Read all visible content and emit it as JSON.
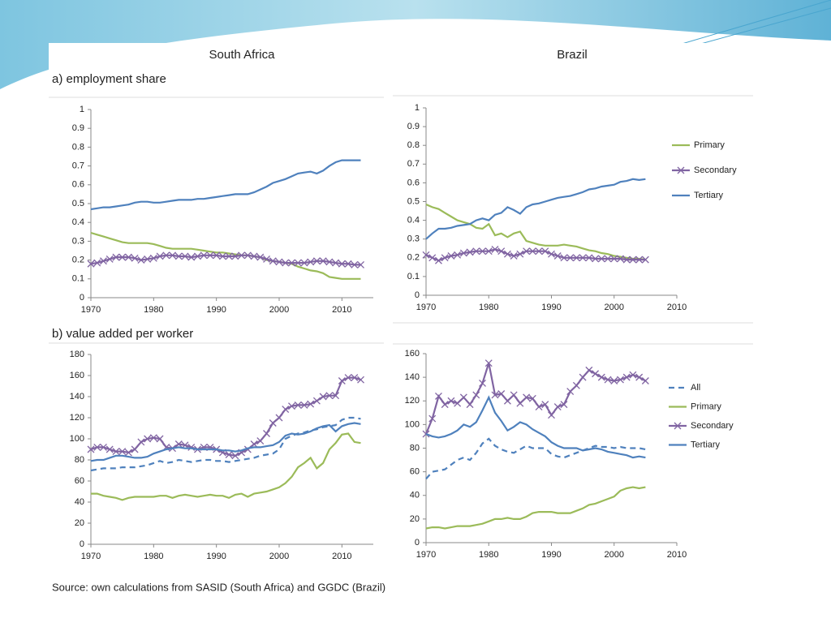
{
  "headings": {
    "left": "South Africa",
    "right": "Brazil"
  },
  "sections": [
    "a) employment share",
    "b) value added per worker"
  ],
  "source": "Source: own calculations from SASID (South Africa) and GGDC (Brazil)",
  "chart_data": [
    {
      "type": "line",
      "x": [
        1970,
        1971,
        1972,
        1973,
        1974,
        1975,
        1976,
        1977,
        1978,
        1979,
        1980,
        1981,
        1982,
        1983,
        1984,
        1985,
        1986,
        1987,
        1988,
        1989,
        1990,
        1991,
        1992,
        1993,
        1994,
        1995,
        1996,
        1997,
        1998,
        1999,
        2000,
        2001,
        2002,
        2003,
        2004,
        2005,
        2006,
        2007,
        2008,
        2009,
        2010,
        2011,
        2012,
        2013
      ],
      "series": [
        {
          "color": "#4f81bd",
          "values": [
            0.47,
            0.475,
            0.48,
            0.48,
            0.485,
            0.49,
            0.495,
            0.505,
            0.51,
            0.51,
            0.505,
            0.505,
            0.51,
            0.515,
            0.52,
            0.52,
            0.52,
            0.525,
            0.525,
            0.53,
            0.535,
            0.54,
            0.545,
            0.55,
            0.55,
            0.55,
            0.56,
            0.575,
            0.59,
            0.61,
            0.62,
            0.63,
            0.645,
            0.66,
            0.665,
            0.67,
            0.66,
            0.675,
            0.7,
            0.72,
            0.73,
            0.73,
            0.73,
            0.73
          ]
        },
        {
          "color": "#9bbb59",
          "values": [
            0.345,
            0.335,
            0.325,
            0.315,
            0.305,
            0.295,
            0.29,
            0.29,
            0.29,
            0.29,
            0.285,
            0.275,
            0.265,
            0.26,
            0.26,
            0.26,
            0.26,
            0.255,
            0.25,
            0.245,
            0.24,
            0.24,
            0.235,
            0.23,
            0.225,
            0.225,
            0.22,
            0.215,
            0.2,
            0.195,
            0.19,
            0.185,
            0.18,
            0.165,
            0.155,
            0.145,
            0.14,
            0.13,
            0.11,
            0.105,
            0.1,
            0.1,
            0.1,
            0.1
          ]
        },
        {
          "color": "#8064a2",
          "marker": "x",
          "values": [
            0.18,
            0.185,
            0.195,
            0.205,
            0.215,
            0.215,
            0.215,
            0.21,
            0.2,
            0.205,
            0.21,
            0.22,
            0.225,
            0.225,
            0.22,
            0.22,
            0.215,
            0.22,
            0.225,
            0.225,
            0.225,
            0.22,
            0.22,
            0.22,
            0.225,
            0.225,
            0.22,
            0.215,
            0.205,
            0.195,
            0.19,
            0.185,
            0.185,
            0.185,
            0.185,
            0.19,
            0.195,
            0.195,
            0.19,
            0.185,
            0.18,
            0.18,
            0.175,
            0.175
          ]
        }
      ],
      "xlim": [
        1970,
        2015
      ],
      "xticks": [
        1970,
        1980,
        1990,
        2000,
        2010
      ],
      "ylim": [
        0,
        1
      ],
      "yticks": [
        0,
        0.1,
        0.2,
        0.3,
        0.4,
        0.5,
        0.6,
        0.7,
        0.8,
        0.9,
        1
      ]
    },
    {
      "type": "line",
      "x": [
        1970,
        1971,
        1972,
        1973,
        1974,
        1975,
        1976,
        1977,
        1978,
        1979,
        1980,
        1981,
        1982,
        1983,
        1984,
        1985,
        1986,
        1987,
        1988,
        1989,
        1990,
        1991,
        1992,
        1993,
        1994,
        1995,
        1996,
        1997,
        1998,
        1999,
        2000,
        2001,
        2002,
        2003,
        2004,
        2005
      ],
      "series": [
        {
          "name": "Primary",
          "color": "#9bbb59",
          "values": [
            0.485,
            0.47,
            0.46,
            0.44,
            0.42,
            0.4,
            0.39,
            0.38,
            0.36,
            0.355,
            0.38,
            0.32,
            0.33,
            0.31,
            0.33,
            0.34,
            0.29,
            0.28,
            0.27,
            0.265,
            0.265,
            0.265,
            0.27,
            0.265,
            0.26,
            0.25,
            0.24,
            0.235,
            0.225,
            0.22,
            0.21,
            0.205,
            0.2,
            0.195,
            0.195,
            0.19
          ]
        },
        {
          "name": "Secondary",
          "color": "#8064a2",
          "marker": "x",
          "values": [
            0.215,
            0.2,
            0.185,
            0.2,
            0.21,
            0.215,
            0.225,
            0.23,
            0.235,
            0.235,
            0.235,
            0.245,
            0.235,
            0.22,
            0.21,
            0.22,
            0.235,
            0.235,
            0.235,
            0.235,
            0.22,
            0.21,
            0.2,
            0.2,
            0.2,
            0.2,
            0.2,
            0.195,
            0.195,
            0.195,
            0.195,
            0.195,
            0.19,
            0.19,
            0.19,
            0.19
          ]
        },
        {
          "name": "Tertiary",
          "color": "#4f81bd",
          "values": [
            0.3,
            0.33,
            0.355,
            0.355,
            0.36,
            0.37,
            0.375,
            0.38,
            0.4,
            0.41,
            0.4,
            0.43,
            0.44,
            0.47,
            0.455,
            0.435,
            0.47,
            0.485,
            0.49,
            0.5,
            0.51,
            0.52,
            0.525,
            0.53,
            0.54,
            0.55,
            0.565,
            0.57,
            0.58,
            0.585,
            0.59,
            0.605,
            0.61,
            0.62,
            0.615,
            0.62
          ]
        }
      ],
      "xlim": [
        1970,
        2010
      ],
      "xticks": [
        1970,
        1980,
        1990,
        2000,
        2010
      ],
      "ylim": [
        0,
        1
      ],
      "yticks": [
        0,
        0.1,
        0.2,
        0.3,
        0.4,
        0.5,
        0.6,
        0.7,
        0.8,
        0.9,
        1
      ],
      "legend": "right"
    },
    {
      "type": "line",
      "x": [
        1970,
        1971,
        1972,
        1973,
        1974,
        1975,
        1976,
        1977,
        1978,
        1979,
        1980,
        1981,
        1982,
        1983,
        1984,
        1985,
        1986,
        1987,
        1988,
        1989,
        1990,
        1991,
        1992,
        1993,
        1994,
        1995,
        1996,
        1997,
        1998,
        1999,
        2000,
        2001,
        2002,
        2003,
        2004,
        2005,
        2006,
        2007,
        2008,
        2009,
        2010,
        2011,
        2012,
        2013
      ],
      "series": [
        {
          "color": "#4f81bd",
          "dash": true,
          "values": [
            70,
            71,
            72,
            72,
            72,
            73,
            73,
            73,
            74,
            75,
            77,
            79,
            77,
            78,
            80,
            79,
            78,
            79,
            80,
            80,
            79,
            79,
            78,
            79,
            80,
            81,
            82,
            84,
            85,
            86,
            90,
            100,
            103,
            105,
            106,
            108,
            109,
            111,
            112,
            113,
            118,
            120,
            120,
            119
          ]
        },
        {
          "color": "#9bbb59",
          "values": [
            48,
            48,
            46,
            45,
            44,
            42,
            44,
            45,
            45,
            45,
            45,
            46,
            46,
            44,
            46,
            47,
            46,
            45,
            46,
            47,
            46,
            46,
            44,
            47,
            48,
            45,
            48,
            49,
            50,
            52,
            54,
            58,
            64,
            73,
            77,
            82,
            72,
            77,
            90,
            96,
            104,
            105,
            97,
            96
          ]
        },
        {
          "color": "#8064a2",
          "marker": "x",
          "values": [
            90,
            92,
            92,
            90,
            88,
            88,
            87,
            90,
            97,
            100,
            101,
            100,
            92,
            91,
            95,
            94,
            92,
            90,
            92,
            92,
            90,
            87,
            85,
            84,
            87,
            90,
            95,
            98,
            105,
            115,
            120,
            128,
            131,
            132,
            132,
            133,
            136,
            140,
            141,
            141,
            155,
            158,
            158,
            156
          ]
        },
        {
          "color": "#4f81bd",
          "values": [
            79,
            80,
            80,
            82,
            84,
            84,
            83,
            82,
            82,
            83,
            86,
            88,
            90,
            91,
            92,
            91,
            91,
            90,
            90,
            90,
            90,
            89,
            89,
            88,
            89,
            91,
            92,
            92,
            93,
            94,
            97,
            103,
            105,
            104,
            105,
            107,
            110,
            112,
            113,
            107,
            112,
            114,
            115,
            114
          ]
        }
      ],
      "xlim": [
        1970,
        2015
      ],
      "xticks": [
        1970,
        1980,
        1990,
        2000,
        2010
      ],
      "ylim": [
        0,
        180
      ],
      "yticks": [
        0,
        20,
        40,
        60,
        80,
        100,
        120,
        140,
        160,
        180
      ]
    },
    {
      "type": "line",
      "x": [
        1970,
        1971,
        1972,
        1973,
        1974,
        1975,
        1976,
        1977,
        1978,
        1979,
        1980,
        1981,
        1982,
        1983,
        1984,
        1985,
        1986,
        1987,
        1988,
        1989,
        1990,
        1991,
        1992,
        1993,
        1994,
        1995,
        1996,
        1997,
        1998,
        1999,
        2000,
        2001,
        2002,
        2003,
        2004,
        2005
      ],
      "series": [
        {
          "name": "All",
          "color": "#4f81bd",
          "dash": true,
          "values": [
            54,
            60,
            61,
            62,
            66,
            70,
            72,
            70,
            76,
            84,
            88,
            82,
            79,
            77,
            76,
            79,
            82,
            80,
            80,
            80,
            75,
            73,
            72,
            74,
            76,
            78,
            80,
            82,
            81,
            81,
            80,
            81,
            80,
            80,
            80,
            79
          ]
        },
        {
          "name": "Primary",
          "color": "#9bbb59",
          "values": [
            12,
            13,
            13,
            12,
            13,
            14,
            14,
            14,
            15,
            16,
            18,
            20,
            20,
            21,
            20,
            20,
            22,
            25,
            26,
            26,
            26,
            25,
            25,
            25,
            27,
            29,
            32,
            33,
            35,
            37,
            39,
            44,
            46,
            47,
            46,
            47
          ]
        },
        {
          "name": "Secondary",
          "color": "#8064a2",
          "marker": "x",
          "values": [
            92,
            105,
            124,
            117,
            120,
            118,
            123,
            117,
            125,
            135,
            152,
            125,
            126,
            120,
            125,
            118,
            123,
            122,
            115,
            117,
            108,
            115,
            117,
            128,
            133,
            140,
            146,
            143,
            140,
            138,
            137,
            138,
            140,
            142,
            140,
            137
          ]
        },
        {
          "name": "Tertiary",
          "color": "#4f81bd",
          "values": [
            92,
            90,
            89,
            90,
            92,
            95,
            100,
            98,
            102,
            112,
            123,
            110,
            103,
            95,
            98,
            102,
            100,
            96,
            93,
            90,
            85,
            82,
            80,
            80,
            80,
            78,
            79,
            80,
            79,
            77,
            76,
            75,
            74,
            72,
            73,
            72
          ]
        }
      ],
      "xlim": [
        1970,
        2010
      ],
      "xticks": [
        1970,
        1980,
        1990,
        2000,
        2010
      ],
      "ylim": [
        0,
        160
      ],
      "yticks": [
        0,
        20,
        40,
        60,
        80,
        100,
        120,
        140,
        160
      ],
      "legend": "right"
    }
  ]
}
